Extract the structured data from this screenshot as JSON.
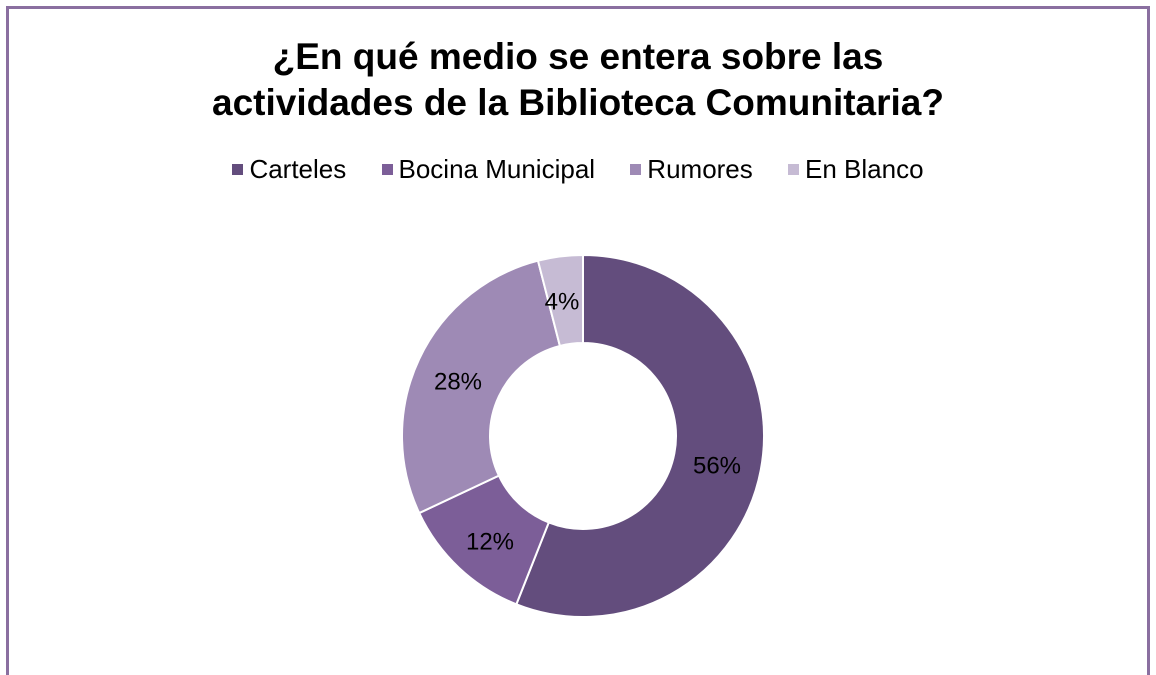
{
  "chart_data": {
    "type": "pie",
    "variant": "doughnut",
    "title": "¿En qué medio se entera sobre las\nactividades de la Biblioteca Comunitaria?",
    "legend_placement": "top",
    "categories": [
      "Carteles",
      "Bocina Municipal",
      "Rumores",
      "En Blanco"
    ],
    "values": [
      56,
      12,
      28,
      4
    ],
    "data_labels": [
      "56%",
      "12%",
      "28%",
      "4%"
    ],
    "colors": [
      "#634d7d",
      "#7c5e98",
      "#9e8ab5",
      "#c6bbd4"
    ]
  }
}
